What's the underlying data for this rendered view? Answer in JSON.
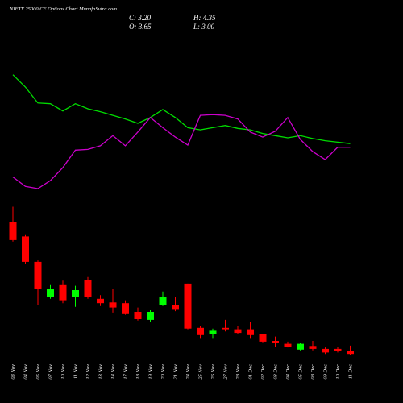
{
  "chart_data": {
    "type": "candlestick",
    "title": "NIFTY 25000  CE Options  Chart MunafaSutra.com",
    "info": [
      "C: 3.20",
      "H: 4.35",
      "O: 3.65",
      "L: 3.00"
    ],
    "categories": [
      "03 Nov",
      "04 Nov",
      "05 Nov",
      "07 Nov",
      "10 Nov",
      "11 Nov",
      "12 Nov",
      "13 Nov",
      "14 Nov",
      "17 Nov",
      "18 Nov",
      "19 Nov",
      "20 Nov",
      "21 Nov",
      "24 Nov",
      "25 Nov",
      "26 Nov",
      "27 Nov",
      "28 Nov",
      "01 Dec",
      "02 Dec",
      "03 Dec",
      "04 Dec",
      "05 Dec",
      "08 Dec",
      "09 Dec",
      "10 Dec",
      "11 Dec"
    ],
    "open": [
      21.4,
      19.4,
      15.9,
      11.1,
      12.8,
      11.0,
      13.4,
      10.8,
      10.3,
      10.2,
      9.0,
      7.9,
      9.9,
      10.0,
      12.9,
      6.8,
      5.9,
      6.8,
      6.6,
      6.6,
      5.9,
      5.0,
      4.6,
      3.8,
      4.3,
      3.9,
      3.9,
      3.65
    ],
    "high": [
      23.5,
      19.7,
      16.1,
      12.8,
      13.3,
      12.6,
      13.8,
      11.3,
      12.2,
      10.6,
      9.6,
      9.3,
      11.8,
      11.0,
      12.9,
      7.0,
      6.7,
      7.9,
      7.0,
      7.6,
      5.9,
      5.6,
      4.9,
      4.7,
      5.0,
      4.1,
      4.2,
      4.35
    ],
    "low": [
      18.7,
      15.6,
      10.0,
      10.8,
      10.2,
      9.7,
      10.8,
      9.8,
      8.9,
      8.6,
      7.8,
      7.6,
      9.8,
      9.1,
      6.6,
      5.4,
      5.4,
      6.3,
      5.9,
      5.4,
      4.8,
      4.2,
      4.1,
      3.7,
      3.7,
      3.2,
      3.4,
      3.0
    ],
    "close": [
      18.9,
      15.9,
      12.2,
      12.2,
      10.6,
      12.0,
      11.0,
      10.2,
      9.6,
      8.8,
      8.0,
      9.0,
      11.0,
      9.4,
      6.7,
      5.8,
      6.4,
      6.6,
      6.1,
      5.8,
      4.9,
      4.7,
      4.2,
      4.6,
      3.9,
      3.4,
      3.6,
      3.2
    ],
    "up_color": "#00ff00",
    "down_color": "#ff0000",
    "lines": [
      {
        "color": "#00dd00",
        "values": [
          41.7,
          40.0,
          37.8,
          37.7,
          36.7,
          37.7,
          37.0,
          36.6,
          36.1,
          35.6,
          35.0,
          35.8,
          36.9,
          35.8,
          34.4,
          34.1,
          34.4,
          34.7,
          34.3,
          34.1,
          33.6,
          33.3,
          33.0,
          33.3,
          32.9,
          32.6,
          32.4,
          32.2
        ]
      },
      {
        "color": "#cc00cc",
        "values": [
          27.6,
          26.3,
          26.0,
          27.1,
          28.9,
          31.3,
          31.4,
          31.9,
          33.3,
          31.9,
          33.8,
          35.8,
          34.4,
          33.1,
          32.0,
          36.1,
          36.2,
          36.1,
          35.6,
          33.8,
          33.1,
          33.9,
          35.8,
          32.8,
          31.1,
          30.0,
          31.7,
          31.7
        ]
      }
    ],
    "ylim": [
      0,
      52
    ]
  }
}
